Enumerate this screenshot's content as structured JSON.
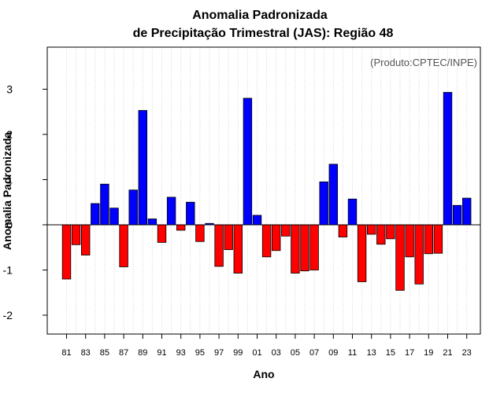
{
  "chart_data": {
    "type": "bar",
    "title": "Anomalia Padronizada",
    "subtitle": "de Precipitação Trimestral (JAS): Região 48",
    "xlabel": "Ano",
    "ylabel": "Anomalia Padronizada",
    "credit": "(Produto:CPTEC/INPE)",
    "ylim": [
      -2.45,
      3.95
    ],
    "yticks": [
      -2,
      -1,
      0,
      1,
      2,
      3
    ],
    "grid": "vertical-dotted",
    "colors": {
      "positive": "#0000FF",
      "negative": "#FF0000",
      "baseline": "#000000",
      "grid": "#D3D3D3"
    },
    "categories": [
      "81",
      "82",
      "83",
      "84",
      "85",
      "86",
      "87",
      "88",
      "89",
      "90",
      "91",
      "92",
      "93",
      "94",
      "95",
      "96",
      "97",
      "98",
      "99",
      "00",
      "01",
      "02",
      "03",
      "04",
      "05",
      "06",
      "07",
      "08",
      "09",
      "10",
      "11",
      "12",
      "13",
      "14",
      "15",
      "16",
      "17",
      "18",
      "19",
      "20",
      "21",
      "22",
      "23"
    ],
    "tick_labels": [
      "81",
      "83",
      "85",
      "87",
      "89",
      "91",
      "93",
      "95",
      "97",
      "99",
      "01",
      "03",
      "05",
      "07",
      "09",
      "11",
      "13",
      "15",
      "17",
      "19",
      "21",
      "23"
    ],
    "values": [
      -1.2,
      -0.44,
      -0.67,
      0.47,
      0.9,
      0.37,
      -0.93,
      0.77,
      2.53,
      0.13,
      -0.39,
      0.61,
      -0.12,
      0.5,
      -0.37,
      0.03,
      -0.92,
      -0.55,
      -1.07,
      2.8,
      0.21,
      -0.71,
      -0.57,
      -0.25,
      -1.07,
      -1.02,
      -1.0,
      0.95,
      1.34,
      -0.27,
      0.57,
      -1.26,
      -0.21,
      -0.43,
      -0.31,
      -1.45,
      -0.71,
      -1.31,
      -0.64,
      -0.63,
      2.93,
      0.43,
      0.59
    ]
  }
}
